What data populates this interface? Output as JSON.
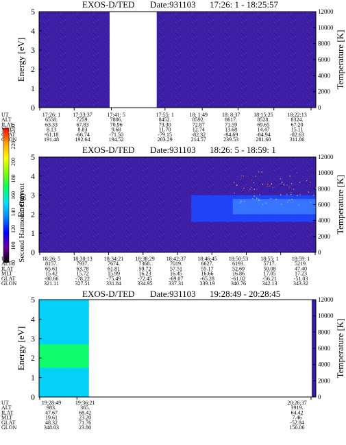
{
  "colors": {
    "background_noise": "#3d1fa6",
    "enhanced_band": "#1e46ff",
    "bright_band": "#3a78ff",
    "cyan": "#00e0ff",
    "green": "#10ff60",
    "gap": "#ffffff"
  },
  "colorbar": {
    "label": "Second Harmonic Current",
    "ticks": [
      "80",
      "100",
      "120",
      "140",
      "160",
      "180",
      "200",
      "220",
      "240"
    ],
    "stops": [
      "#000000",
      "#6a00a0",
      "#0000ff",
      "#0080ff",
      "#00e0ff",
      "#00ff60",
      "#80ff00",
      "#ffff00",
      "#ffa000",
      "#ff0000"
    ]
  },
  "chart_data": [
    {
      "type": "heatmap",
      "title": "EXOS-D/TED",
      "date_label": "Date:931103",
      "time_range": "17:26: 1 - 18:25:57",
      "ylabel": "Energy [eV]",
      "y2label": "Temperature [K]",
      "ylim": [
        0,
        5
      ],
      "y2lim": [
        0,
        12000
      ],
      "yticks": [
        "0",
        "1",
        "2",
        "3",
        "4",
        "5"
      ],
      "y2ticks": [
        "0",
        "2000",
        "4000",
        "6000",
        "8000",
        "10000",
        "12000"
      ],
      "data_gap_fraction": [
        0.255,
        0.425
      ],
      "bands": [],
      "orbit_table": {
        "labels": [
          "UT",
          "ALT",
          "ILAT",
          "MLT",
          "GLAT",
          "GLON"
        ],
        "columns": [
          {
            "pos": 0.0,
            "values": [
              "17:26: 1",
              "6558.",
              "63.33",
              "8.13",
              "-61.18",
              "191.48"
            ]
          },
          {
            "pos": 0.125,
            "values": [
              "17:33:37",
              "7259.",
              "67.83",
              "8.83",
              "-66.74",
              "192.64"
            ]
          },
          {
            "pos": 0.26,
            "values": [
              "17:41: 5",
              "7806.",
              "70.96",
              "9.68",
              "-71.50",
              "194.52"
            ]
          },
          {
            "pos": 0.455,
            "values": [
              "17:55: 1",
              "8452.",
              "73.30",
              "11.70",
              "-79.15",
              "203.29"
            ]
          },
          {
            "pos": 0.59,
            "values": [
              "18: 1:49",
              "8592.",
              "72.87",
              "12.74",
              "-82.32",
              "214.57"
            ]
          },
          {
            "pos": 0.72,
            "values": [
              "18: 8:37",
              "8617.",
              "71.59",
              "13.68",
              "-84.69",
              "239.53"
            ]
          },
          {
            "pos": 0.85,
            "values": [
              "18:15:25",
              "8528.",
              "69.65",
              "14.47",
              "-84.94",
              "281.60"
            ]
          },
          {
            "pos": 0.985,
            "values": [
              "18:22:13",
              "8324.",
              "67.20",
              "15.11",
              "-82.63",
              "311.86"
            ]
          }
        ]
      }
    },
    {
      "type": "heatmap",
      "title": "EXOS-D/TED",
      "date_label": "Date:931103",
      "time_range": "18:26: 5 - 18:59: 1",
      "ylabel": "Energy",
      "y2label": "Temperature [K]",
      "ylim": [
        0,
        5
      ],
      "y2lim": [
        0,
        12000
      ],
      "yticks": [
        "0",
        "1",
        "2",
        "3",
        "4",
        "5"
      ],
      "y2ticks": [
        "0",
        "2000",
        "4000",
        "6000",
        "8000",
        "10000",
        "12000"
      ],
      "data_gap_fraction": null,
      "bands": [
        {
          "x_start": 0.55,
          "x_end": 1.0,
          "e_low": 1.6,
          "e_high": 3.0,
          "level": "enhanced"
        },
        {
          "x_start": 0.7,
          "x_end": 1.0,
          "e_low": 2.0,
          "e_high": 2.8,
          "level": "bright"
        }
      ],
      "orbit_table": {
        "labels": [
          "UT",
          "ALT",
          "ILAT",
          "MLT",
          "GLAT",
          "GLON"
        ],
        "columns": [
          {
            "pos": 0.0,
            "values": [
              "18:26: 5",
              "8157.",
              "65.61",
              "15.42",
              "-80.66",
              "321.11"
            ]
          },
          {
            "pos": 0.125,
            "values": [
              "18:30:13",
              "7937.",
              "63.78",
              "15.72",
              "-78.22",
              "327.51"
            ]
          },
          {
            "pos": 0.25,
            "values": [
              "18:34:21",
              "7674.",
              "61.81",
              "15.99",
              "-75.49",
              "331.84"
            ]
          },
          {
            "pos": 0.375,
            "values": [
              "18:38:29",
              "7368.",
              "59.72",
              "16.23",
              "-72.45",
              "334.95"
            ]
          },
          {
            "pos": 0.5,
            "values": [
              "18:42:37",
              "7019.",
              "57.51",
              "16.45",
              "-69.07",
              "337.31"
            ]
          },
          {
            "pos": 0.625,
            "values": [
              "18:46:45",
              "6627.",
              "55.17",
              "16.66",
              "-65.28",
              "339.19"
            ]
          },
          {
            "pos": 0.75,
            "values": [
              "18:50:53",
              "6193.",
              "52.69",
              "16.86",
              "-61.02",
              "340.76"
            ]
          },
          {
            "pos": 0.875,
            "values": [
              "18:55: 1",
              "5717.",
              "50.08",
              "17.05",
              "-56.21",
              "342.13"
            ]
          },
          {
            "pos": 1.0,
            "values": [
              "18:59: 1",
              "5219.",
              "47.40",
              "17.23",
              "-51.03",
              "343.32"
            ]
          }
        ]
      }
    },
    {
      "type": "heatmap",
      "title": "EXOS-D/TED",
      "date_label": "Date:931103",
      "time_range": "19:28:49 - 20:28:45",
      "ylabel": "Energy [eV]",
      "y2label": "Temperature [K]",
      "ylim": [
        0,
        5
      ],
      "y2lim": [
        0,
        12000
      ],
      "yticks": [
        "0",
        "1",
        "2",
        "3",
        "4",
        "5"
      ],
      "y2ticks": [
        "0",
        "2000",
        "4000",
        "6000",
        "8000",
        "10000",
        "12000"
      ],
      "data_gap_fraction": [
        0.18,
        0.985
      ],
      "bands": [
        {
          "x_start": 0.0,
          "x_end": 0.18,
          "e_low": 0.0,
          "e_high": 5.0,
          "level": "cyan"
        },
        {
          "x_start": 0.0,
          "x_end": 0.18,
          "e_low": 1.5,
          "e_high": 2.7,
          "level": "green"
        }
      ],
      "orbit_table": {
        "labels": [
          "UT",
          "ALT",
          "ILAT",
          "MLT",
          "GLAT",
          "GLON"
        ],
        "columns": [
          {
            "pos": 0.0,
            "values": [
              "19:28:49",
              "983.",
              "47.67",
              "19.61",
              "48.32",
              "348.03"
            ]
          },
          {
            "pos": 0.135,
            "values": [
              "19:36:21",
              "365.",
              "68.42",
              "23.20",
              "71.76",
              "23.80"
            ]
          },
          {
            "pos": 0.985,
            "values": [
              "20:26:37",
              "3919.",
              "64.42",
              "7.46",
              "-52.84",
              "150.06"
            ]
          }
        ]
      }
    }
  ]
}
